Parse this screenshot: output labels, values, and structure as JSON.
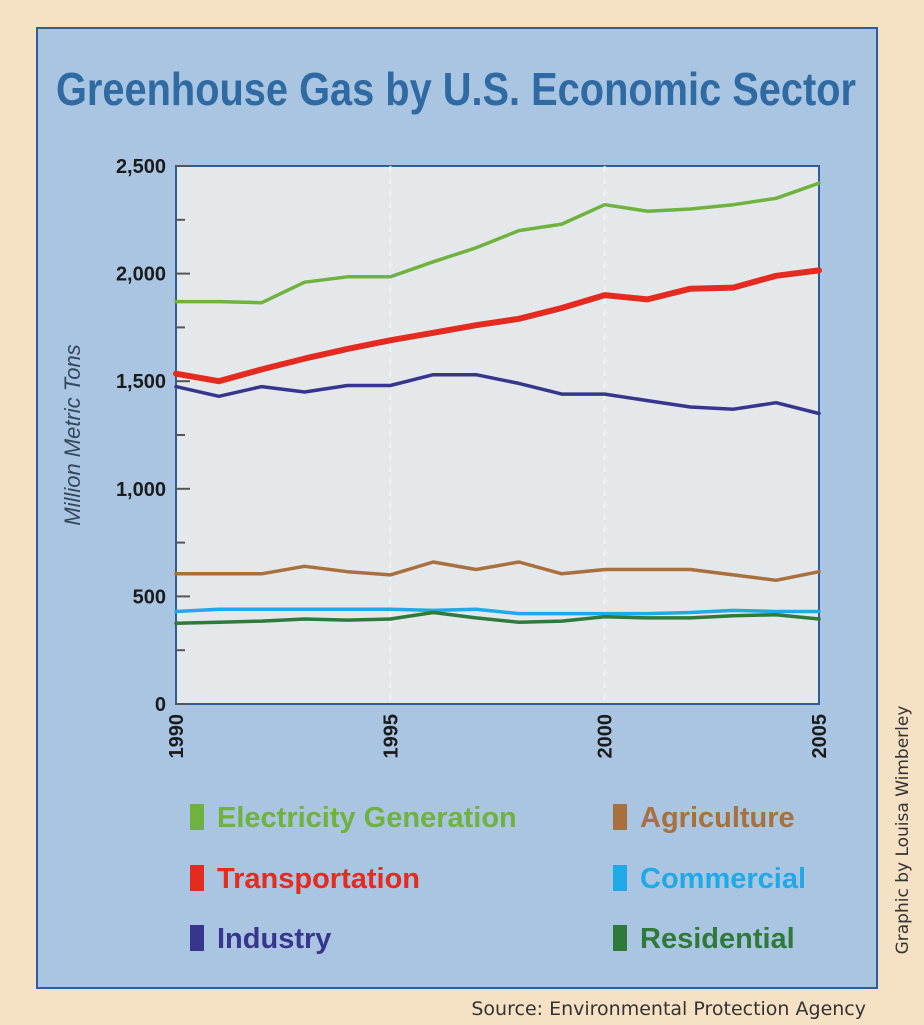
{
  "chart_data": {
    "type": "line",
    "title": "Greenhouse Gas by U.S. Economic Sector",
    "ylabel": "Million Metric Tons",
    "xlabel": "",
    "x": [
      1990,
      1991,
      1992,
      1993,
      1994,
      1995,
      1996,
      1997,
      1998,
      1999,
      2000,
      2001,
      2002,
      2003,
      2004,
      2005
    ],
    "xlim": [
      1990,
      2005
    ],
    "ylim": [
      0,
      2500
    ],
    "x_ticks": [
      "1990",
      "1995",
      "2000",
      "2005"
    ],
    "y_ticks": [
      "0",
      "500",
      "1,000",
      "1,500",
      "2,000",
      "2,500"
    ],
    "legend_position": "bottom",
    "series": [
      {
        "name": "Electricity Generation",
        "color": "#6fb23e",
        "values": [
          1870,
          1870,
          1865,
          1960,
          1985,
          1985,
          2055,
          2120,
          2200,
          2230,
          2320,
          2290,
          2300,
          2320,
          2350,
          2420
        ]
      },
      {
        "name": "Transportation",
        "color": "#e52a20",
        "values": [
          1535,
          1500,
          1555,
          1605,
          1650,
          1690,
          1725,
          1760,
          1790,
          1840,
          1900,
          1880,
          1930,
          1935,
          1990,
          2015
        ]
      },
      {
        "name": "Industry",
        "color": "#38358e",
        "values": [
          1475,
          1430,
          1475,
          1450,
          1480,
          1480,
          1530,
          1530,
          1490,
          1440,
          1440,
          1410,
          1380,
          1370,
          1400,
          1350
        ]
      },
      {
        "name": "Agriculture",
        "color": "#a8703c",
        "values": [
          605,
          605,
          605,
          640,
          615,
          600,
          660,
          625,
          660,
          605,
          625,
          625,
          625,
          600,
          575,
          615
        ]
      },
      {
        "name": "Commercial",
        "color": "#1fa9e6",
        "values": [
          430,
          440,
          440,
          440,
          440,
          440,
          435,
          440,
          420,
          420,
          420,
          420,
          425,
          435,
          430,
          430
        ]
      },
      {
        "name": "Residential",
        "color": "#2f7a3a",
        "values": [
          375,
          380,
          385,
          395,
          390,
          395,
          425,
          400,
          380,
          385,
          405,
          400,
          400,
          410,
          415,
          395
        ]
      }
    ]
  },
  "legend": [
    {
      "label": "Electricity Generation",
      "color": "#6fb23e"
    },
    {
      "label": "Transportation",
      "color": "#e52a20"
    },
    {
      "label": "Industry",
      "color": "#38358e"
    },
    {
      "label": "Agriculture",
      "color": "#a8703c"
    },
    {
      "label": "Commercial",
      "color": "#1fa9e6"
    },
    {
      "label": "Residential",
      "color": "#2f7a3a"
    }
  ],
  "credit": "Graphic by Louisa Wimberley",
  "source": "Source: Environmental Protection Agency",
  "colors": {
    "page_background": "#f7e1c4",
    "panel_background": "#a9c5e1",
    "plot_background": "#e5e8eb",
    "frame": "#2d5e99",
    "title": "#2f6aa3"
  }
}
